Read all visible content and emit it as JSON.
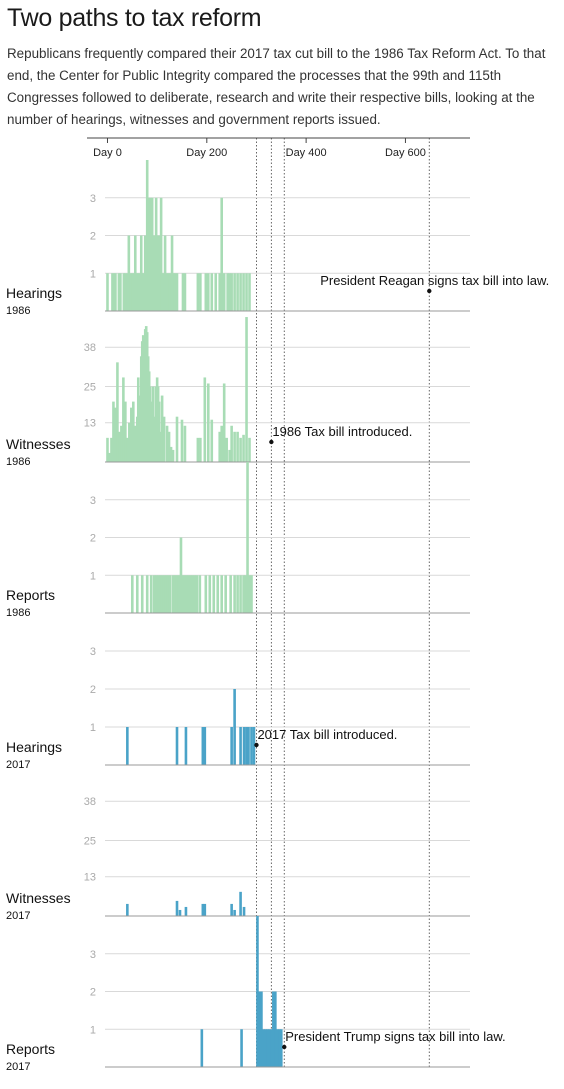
{
  "title": "Two paths to tax reform",
  "subtitle": "Republicans frequently compared their 2017 tax cut bill to the 1986 Tax Reform Act. To that end, the Center for Public Integrity compared the processes that the 99th and 115th Congresses followed to deliberate, research and write their respective bills, looking at the number of hearings, witnesses and government reports issued.",
  "colors": {
    "c1986": "#a8dcb5",
    "c2017": "#4aa3c8",
    "grid": "#d9d9d9",
    "axis": "#666666"
  },
  "chart_data": [
    {
      "type": "bar",
      "name": "Hearings",
      "year": "1986",
      "color": "c1986",
      "yticks": [
        1,
        2,
        3
      ],
      "ylim": [
        0,
        4
      ],
      "x": [
        0,
        10,
        13,
        16,
        23,
        26,
        33,
        36,
        40,
        43,
        46,
        50,
        53,
        56,
        60,
        62,
        66,
        68,
        70,
        73,
        76,
        78,
        80,
        82,
        84,
        86,
        88,
        90,
        92,
        94,
        96,
        98,
        100,
        102,
        104,
        106,
        108,
        110,
        113,
        116,
        120,
        123,
        126,
        130,
        133,
        136,
        140,
        152,
        156,
        182,
        187,
        198,
        203,
        210,
        218,
        226,
        230,
        235,
        242,
        246,
        250,
        256,
        262,
        268,
        274,
        280,
        286
      ],
      "values": [
        1,
        1,
        1,
        1,
        1,
        1,
        1,
        1,
        1,
        2,
        1,
        1,
        1,
        2,
        1,
        1,
        1,
        2,
        1,
        1,
        2,
        1,
        4,
        3,
        2,
        3,
        2,
        3,
        2,
        1,
        2,
        3,
        1,
        2,
        2,
        1,
        3,
        1,
        1,
        2,
        1,
        1,
        1,
        2,
        1,
        1,
        1,
        1,
        1,
        1,
        1,
        1,
        1,
        1,
        1,
        1,
        3,
        1,
        1,
        1,
        1,
        1,
        1,
        1,
        1,
        1,
        1
      ],
      "annotation": {
        "text": "President Reagan signs tax bill into law.",
        "day": 648
      }
    },
    {
      "type": "bar",
      "name": "Witnesses",
      "year": "1986",
      "color": "c1986",
      "yticks": [
        13,
        25,
        38
      ],
      "ylim": [
        0,
        50
      ],
      "x": [
        0,
        4,
        8,
        12,
        16,
        20,
        24,
        28,
        32,
        36,
        40,
        44,
        48,
        52,
        56,
        60,
        62,
        66,
        68,
        70,
        72,
        74,
        76,
        78,
        80,
        82,
        84,
        86,
        88,
        90,
        92,
        94,
        96,
        98,
        100,
        102,
        104,
        106,
        110,
        114,
        120,
        124,
        128,
        132,
        140,
        150,
        156,
        182,
        187,
        196,
        203,
        210,
        226,
        230,
        235,
        240,
        246,
        250,
        256,
        262,
        268,
        274,
        280,
        286
      ],
      "values": [
        8,
        3,
        8,
        20,
        18,
        33,
        10,
        12,
        28,
        20,
        8,
        13,
        18,
        20,
        12,
        15,
        28,
        22,
        35,
        40,
        42,
        38,
        44,
        45,
        43,
        35,
        30,
        25,
        20,
        15,
        25,
        12,
        15,
        25,
        28,
        25,
        20,
        10,
        22,
        15,
        12,
        10,
        5,
        4,
        15,
        14,
        12,
        8,
        8,
        28,
        26,
        14,
        10,
        12,
        26,
        8,
        4,
        12,
        10,
        10,
        8,
        9,
        48,
        8
      ],
      "annotation": {
        "text": "1986 Tax bill introduced.",
        "day": 330
      }
    },
    {
      "type": "bar",
      "name": "Reports",
      "year": "1986",
      "color": "c1986",
      "yticks": [
        1,
        2,
        3
      ],
      "ylim": [
        0,
        4
      ],
      "x": [
        50,
        60,
        70,
        80,
        88,
        94,
        98,
        102,
        106,
        110,
        114,
        118,
        122,
        126,
        132,
        136,
        140,
        144,
        148,
        152,
        156,
        160,
        164,
        168,
        172,
        176,
        180,
        186,
        198,
        206,
        214,
        222,
        230,
        238,
        248,
        256,
        262,
        268,
        274,
        278,
        282,
        286,
        290
      ],
      "values": [
        1,
        1,
        1,
        1,
        1,
        1,
        1,
        1,
        1,
        1,
        1,
        1,
        1,
        1,
        1,
        1,
        1,
        1,
        2,
        1,
        1,
        1,
        1,
        1,
        1,
        1,
        1,
        1,
        1,
        1,
        1,
        1,
        1,
        1,
        1,
        1,
        1,
        1,
        1,
        1,
        4,
        1,
        1
      ],
      "annotation": null
    },
    {
      "type": "bar",
      "name": "Hearings",
      "year": "2017",
      "color": "c2017",
      "yticks": [
        1,
        2,
        3
      ],
      "ylim": [
        0,
        4
      ],
      "x": [
        40,
        140,
        158,
        192,
        196,
        250,
        256,
        268,
        275,
        280,
        284,
        290,
        295
      ],
      "values": [
        1,
        1,
        1,
        1,
        1,
        1,
        2,
        1,
        1,
        1,
        1,
        1,
        1
      ],
      "annotation": {
        "text": "2017 Tax bill introduced.",
        "day": 300
      }
    },
    {
      "type": "bar",
      "name": "Witnesses",
      "year": "2017",
      "color": "c2017",
      "yticks": [
        13,
        25,
        38
      ],
      "ylim": [
        0,
        50
      ],
      "x": [
        40,
        140,
        146,
        158,
        192,
        196,
        250,
        256,
        268,
        275
      ],
      "values": [
        4,
        5,
        2,
        3,
        4,
        4,
        4,
        2,
        8,
        3
      ],
      "annotation": null
    },
    {
      "type": "bar",
      "name": "Reports",
      "year": "2017",
      "color": "c2017",
      "yticks": [
        1,
        2,
        3
      ],
      "ylim": [
        0,
        4
      ],
      "x": [
        190,
        270,
        302,
        306,
        310,
        314,
        318,
        322,
        326,
        330,
        334,
        338,
        342,
        346,
        350
      ],
      "values": [
        1,
        1,
        4,
        2,
        2,
        1,
        1,
        1,
        1,
        1,
        2,
        2,
        1,
        1,
        1
      ],
      "annotation": {
        "text": "President Trump signs tax bill into law.",
        "day": 356
      }
    }
  ],
  "xaxis": {
    "ticks": [
      {
        "value": 0,
        "label": "Day 0"
      },
      {
        "value": 200,
        "label": "Day 200"
      },
      {
        "value": 400,
        "label": "Day 400"
      },
      {
        "value": 600,
        "label": "Day 600"
      }
    ],
    "xlim": [
      -5,
      730
    ]
  },
  "markers": [
    300,
    330,
    356,
    648
  ]
}
